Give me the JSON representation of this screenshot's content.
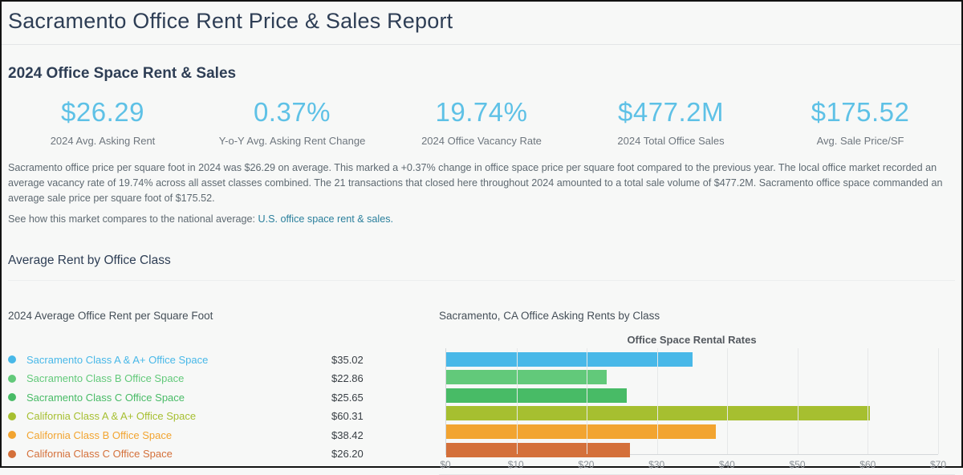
{
  "page": {
    "title": "Sacramento Office Rent Price & Sales Report"
  },
  "overview": {
    "heading": "2024 Office Space Rent & Sales",
    "metrics": [
      {
        "value": "$26.29",
        "label": "2024 Avg. Asking Rent"
      },
      {
        "value": "0.37%",
        "label": "Y-o-Y Avg. Asking Rent Change"
      },
      {
        "value": "19.74%",
        "label": "2024 Office Vacancy Rate"
      },
      {
        "value": "$477.2M",
        "label": "2024 Total Office Sales"
      },
      {
        "value": "$175.52",
        "label": "Avg. Sale Price/SF"
      }
    ],
    "paragraph": "Sacramento office price per square foot in 2024 was $26.29 on average. This marked a +0.37% change in office space price per square foot compared to the previous year. The local office market recorded an average vacancy rate of 19.74% across all asset classes combined. The 21 transactions that closed here throughout 2024 amounted to a total sale volume of $477.2M. Sacramento office space commanded an average sale price per square foot of $175.52.",
    "compare_prefix": "See how this market compares to the national average:",
    "compare_link_text": "U.S. office space rent & sales."
  },
  "rent_by_class": {
    "heading": "Average Rent by Office Class",
    "table_heading": "2024 Average Office Rent per Square Foot",
    "chart_heading": "Sacramento, CA Office Asking Rents by Class",
    "rows": [
      {
        "label": "Sacramento Class A & A+ Office Space",
        "value": "$35.02",
        "color": "#48b8e8"
      },
      {
        "label": "Sacramento Class B Office Space",
        "value": "$22.86",
        "color": "#62c97a"
      },
      {
        "label": "Sacramento Class C Office Space",
        "value": "$25.65",
        "color": "#48bb66"
      },
      {
        "label": "California Class A & A+ Office Space",
        "value": "$60.31",
        "color": "#a6bf30"
      },
      {
        "label": "California Class B Office Space",
        "value": "$38.42",
        "color": "#f2a430"
      },
      {
        "label": "California Class C Office Space",
        "value": "$26.20",
        "color": "#d4703a"
      }
    ]
  },
  "chart_data": {
    "type": "bar",
    "orientation": "horizontal",
    "title": "Office Space Rental Rates",
    "categories": [
      "Sacramento Class A & A+ Office Space",
      "Sacramento Class B Office Space",
      "Sacramento Class C Office Space",
      "California Class A & A+ Office Space",
      "California Class B Office Space",
      "California Class C Office Space"
    ],
    "values": [
      35.02,
      22.86,
      25.65,
      60.31,
      38.42,
      26.2
    ],
    "colors": [
      "#48b8e8",
      "#62c97a",
      "#48bb66",
      "#a6bf30",
      "#f2a430",
      "#d4703a"
    ],
    "xlim": [
      0,
      70
    ],
    "x_ticks": [
      "$0",
      "$10",
      "$20",
      "$30",
      "$40",
      "$50",
      "$60",
      "$70"
    ],
    "grid": true,
    "legend_position": "left-table"
  },
  "theme": {
    "heading_color": "#2e3e55",
    "metric_value_color": "#5ec1e6",
    "body_text_color": "#5e6971",
    "link_color": "#2a7f9c",
    "page_background": "#f7f8f7"
  }
}
